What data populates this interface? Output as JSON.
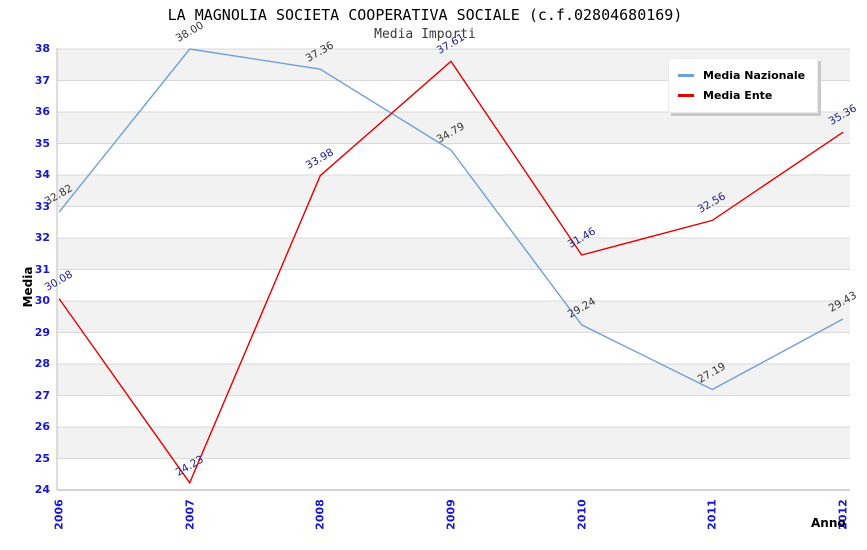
{
  "header": {
    "title": "LA MAGNOLIA SOCIETA COOPERATIVA SOCIALE (c.f.02804680169)",
    "subtitle": "Media Importi"
  },
  "chart_data": {
    "type": "line",
    "title": "LA MAGNOLIA SOCIETA COOPERATIVA SOCIALE (c.f.02804680169)",
    "subtitle": "Media Importi",
    "xlabel": "Anno",
    "ylabel": "Media",
    "x": [
      "2006",
      "2007",
      "2008",
      "2009",
      "2010",
      "2011",
      "2012"
    ],
    "series": [
      {
        "name": "Media Nazionale",
        "color": "#70a0d8",
        "label_color": "#333333",
        "values": [
          32.82,
          38.0,
          37.36,
          34.79,
          29.24,
          27.19,
          29.43
        ]
      },
      {
        "name": "Media Ente",
        "color": "#e60000",
        "label_color": "#202090",
        "values": [
          30.08,
          24.23,
          33.98,
          37.61,
          31.46,
          32.56,
          35.36
        ]
      }
    ],
    "ylim": [
      24,
      38
    ],
    "ytick_step": 1,
    "grid": "horizontal-only",
    "band_colors": [
      "#f2f2f2",
      "#ffffff"
    ],
    "tick_color": "#1717ce",
    "legend_position": "top-right"
  }
}
